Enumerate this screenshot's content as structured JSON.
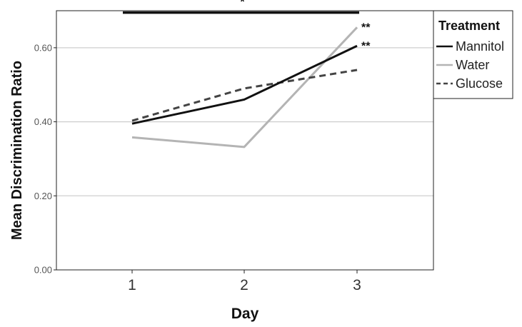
{
  "chart_data": {
    "type": "line",
    "xlabel": "Day",
    "ylabel": "Mean Discrimination Ratio",
    "categories": [
      "1",
      "2",
      "3"
    ],
    "ylim": [
      0.0,
      0.7
    ],
    "yticks": [
      "0.00",
      "0.20",
      "0.40",
      "0.60"
    ],
    "ytick_values": [
      0.0,
      0.2,
      0.4,
      0.6
    ],
    "grid": "horizontal",
    "legend": {
      "title": "Treatment",
      "placement": "right"
    },
    "series": [
      {
        "name": "Mannitol",
        "values": [
          0.395,
          0.46,
          0.605
        ],
        "color": "#111111",
        "style": "solid"
      },
      {
        "name": "Water",
        "values": [
          0.358,
          0.332,
          0.655
        ],
        "color": "#b4b4b4",
        "style": "solid"
      },
      {
        "name": "Glucose",
        "values": [
          0.403,
          0.49,
          0.54
        ],
        "color": "#444444",
        "style": "dashed"
      }
    ],
    "annotations": [
      {
        "text": "*",
        "type": "bracket",
        "from": "1",
        "to": "3",
        "y": 0.695
      },
      {
        "text": "**",
        "series": "Water",
        "category": "3"
      },
      {
        "text": "**",
        "series": "Mannitol",
        "category": "3"
      }
    ]
  }
}
